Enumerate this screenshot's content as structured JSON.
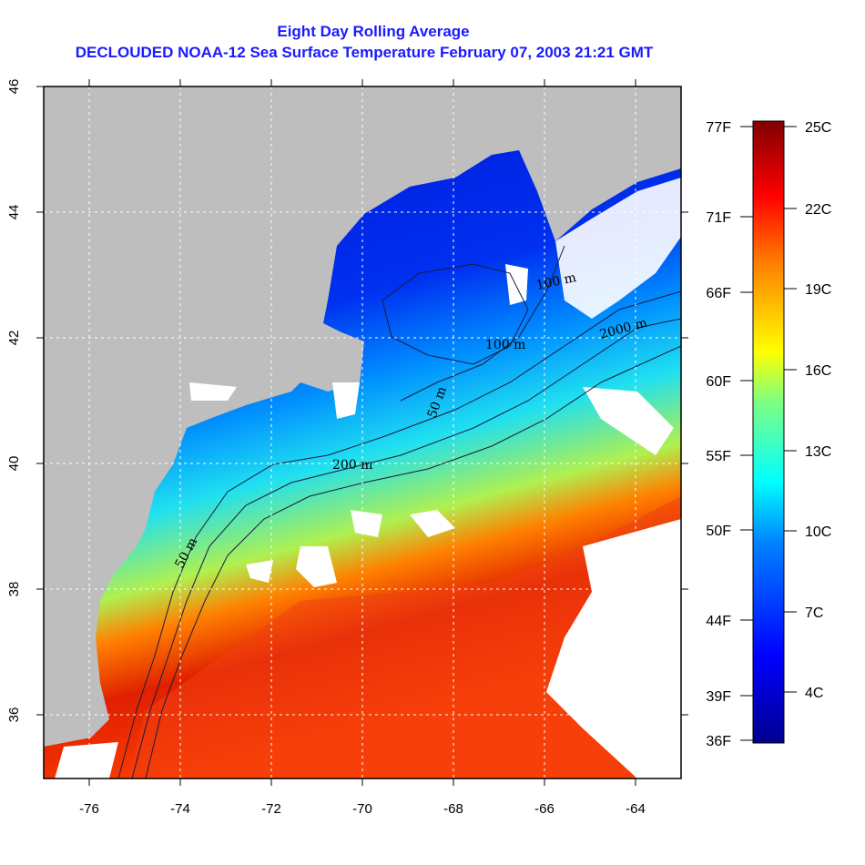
{
  "title": {
    "line1": "Eight Day Rolling Average",
    "line2": "DECLOUDED NOAA-12 Sea Surface Temperature February 07, 2003 21:21 GMT"
  },
  "map": {
    "longitude_ticks": [
      "-76",
      "-74",
      "-72",
      "-70",
      "-68",
      "-66",
      "-64"
    ],
    "latitude_ticks": [
      "46",
      "44",
      "42",
      "40",
      "38",
      "36"
    ],
    "contour_labels": [
      "50 m",
      "100 m",
      "200 m",
      "2000 m",
      "100 m",
      "50 m"
    ],
    "colors": {
      "land": "#bebebe",
      "cloud": "#ffffff",
      "grid": "#ffffff"
    }
  },
  "colorbar": {
    "fahrenheit_labels": [
      "77F",
      "71F",
      "66F",
      "60F",
      "55F",
      "50F",
      "44F",
      "39F",
      "36F"
    ],
    "celsius_labels": [
      "25C",
      "22C",
      "19C",
      "16C",
      "13C",
      "10C",
      "7C",
      "4C"
    ],
    "gradient": [
      "#00008f",
      "#0000ff",
      "#0080ff",
      "#00ffff",
      "#80ff80",
      "#ffff00",
      "#ff8000",
      "#ff0000",
      "#800000"
    ]
  }
}
